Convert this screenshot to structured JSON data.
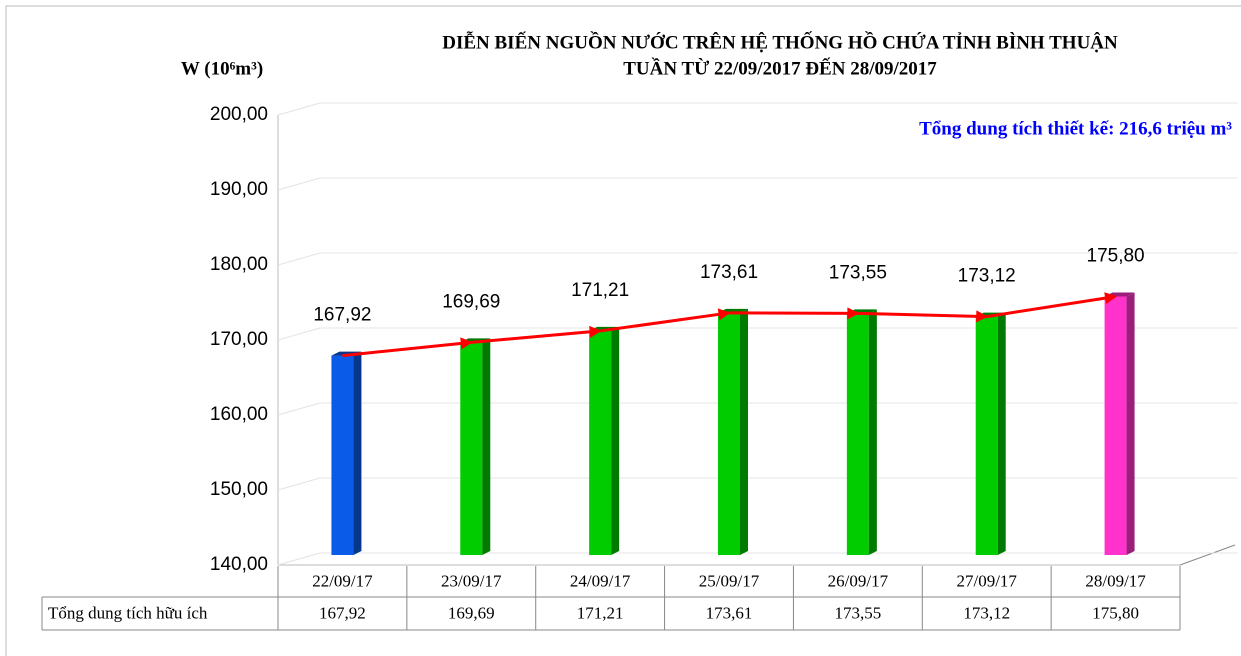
{
  "chart_data": {
    "type": "bar",
    "title": [
      "DIỄN BIẾN NGUỒN NƯỚC TRÊN HỆ THỐNG HỒ CHỨA TỈNH BÌNH THUẬN",
      "TUẦN TỪ 22/09/2017 ĐẾN 28/09/2017"
    ],
    "y_label": "W (10⁶m³)",
    "annotation": "Tổng dung tích thiết kế: 216,6 triệu m³",
    "categories": [
      "22/09/17",
      "23/09/17",
      "24/09/17",
      "25/09/17",
      "26/09/17",
      "27/09/17",
      "28/09/17"
    ],
    "series": [
      {
        "name": "Tổng dung tích hữu ích",
        "color": "#ff0000",
        "bar_colors": [
          "#0a5ce8",
          "#00cc00",
          "#00cc00",
          "#00cc00",
          "#00cc00",
          "#00cc00",
          "#ff33cc"
        ],
        "values": [
          167.92,
          169.69,
          171.21,
          173.61,
          173.55,
          173.12,
          175.8
        ],
        "value_labels": [
          "167,92",
          "169,69",
          "171,21",
          "173,61",
          "173,55",
          "173,12",
          "175,80"
        ]
      }
    ],
    "ylim": [
      140,
      200
    ],
    "yticks": [
      {
        "value": 140,
        "label": "140,00"
      },
      {
        "value": 150,
        "label": "150,00"
      },
      {
        "value": 160,
        "label": "160,00"
      },
      {
        "value": 170,
        "label": "170,00"
      },
      {
        "value": 180,
        "label": "180,00"
      },
      {
        "value": 190,
        "label": "190,00"
      },
      {
        "value": 200,
        "label": "200,00"
      }
    ],
    "grid": true
  }
}
